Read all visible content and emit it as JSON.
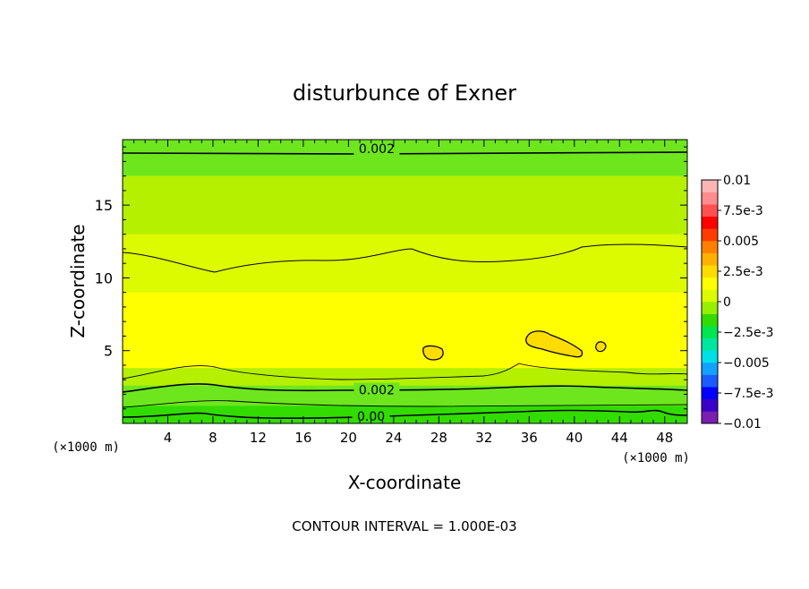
{
  "chart_data": {
    "type": "heatmap",
    "title": "disturbunce of Exner",
    "xlabel": "X-coordinate",
    "ylabel": "Z-coordinate",
    "x_unit_left": "(×1000 m)",
    "x_unit_right": "(×1000 m)",
    "footer": "CONTOUR INTERVAL = 1.000E-03",
    "xlim": [
      0,
      50
    ],
    "ylim": [
      0,
      19.5
    ],
    "x_ticks": [
      4,
      8,
      12,
      16,
      20,
      24,
      28,
      32,
      36,
      40,
      44,
      48
    ],
    "x_tick_labels": [
      "4",
      "8",
      "12",
      "16",
      "20",
      "24",
      "28",
      "32",
      "36",
      "40",
      "44",
      "48"
    ],
    "y_ticks": [
      5,
      10,
      15
    ],
    "y_tick_labels": [
      "5",
      "10",
      "15"
    ],
    "colorbar": {
      "range": [
        -0.01,
        0.01
      ],
      "labels": [
        {
          "value": 0.01,
          "text": "0.01"
        },
        {
          "value": 0.0075,
          "text": "7.5e-3"
        },
        {
          "value": 0.005,
          "text": "0.005"
        },
        {
          "value": 0.0025,
          "text": "2.5e-3"
        },
        {
          "value": 0,
          "text": "0"
        },
        {
          "value": -0.0025,
          "text": "−2.5e-3"
        },
        {
          "value": -0.005,
          "text": "−0.005"
        },
        {
          "value": -0.0075,
          "text": "−7.5e-3"
        },
        {
          "value": -0.01,
          "text": "−0.01"
        }
      ],
      "colors": [
        "#7a1fb0",
        "#3a00c8",
        "#0000ff",
        "#1a5cff",
        "#14a0ff",
        "#00e0e6",
        "#00e6a0",
        "#00e650",
        "#32dc00",
        "#96f000",
        "#dcfa00",
        "#ffff00",
        "#ffdc00",
        "#ffb000",
        "#ff8000",
        "#ff3c00",
        "#ff0000",
        "#ff5050",
        "#ff8c8c",
        "#ffb4b4"
      ]
    },
    "bands": [
      {
        "name": "top",
        "z": [
          17.0,
          19.5
        ],
        "color": "#6ee61e"
      },
      {
        "name": "upper",
        "z": [
          13.0,
          17.0
        ],
        "color": "#b4f000"
      },
      {
        "name": "mid",
        "z": [
          9.0,
          13.0
        ],
        "color": "#dcfa00"
      },
      {
        "name": "core",
        "z": [
          3.8,
          9.0
        ],
        "color": "#ffff00"
      },
      {
        "name": "low1",
        "z": [
          2.6,
          3.8
        ],
        "color": "#b4f000"
      },
      {
        "name": "low2",
        "z": [
          1.2,
          2.6
        ],
        "color": "#6ee61e"
      },
      {
        "name": "ground",
        "z": [
          0,
          1.2
        ],
        "color": "#32dc00"
      }
    ],
    "contour_labels": [
      {
        "text": "0.002",
        "x": 22.5,
        "z": 18.9
      },
      {
        "text": "0.002",
        "x": 22.5,
        "z": 2.3
      },
      {
        "text": "0.00",
        "x": 22.0,
        "z": 0.5
      }
    ]
  }
}
